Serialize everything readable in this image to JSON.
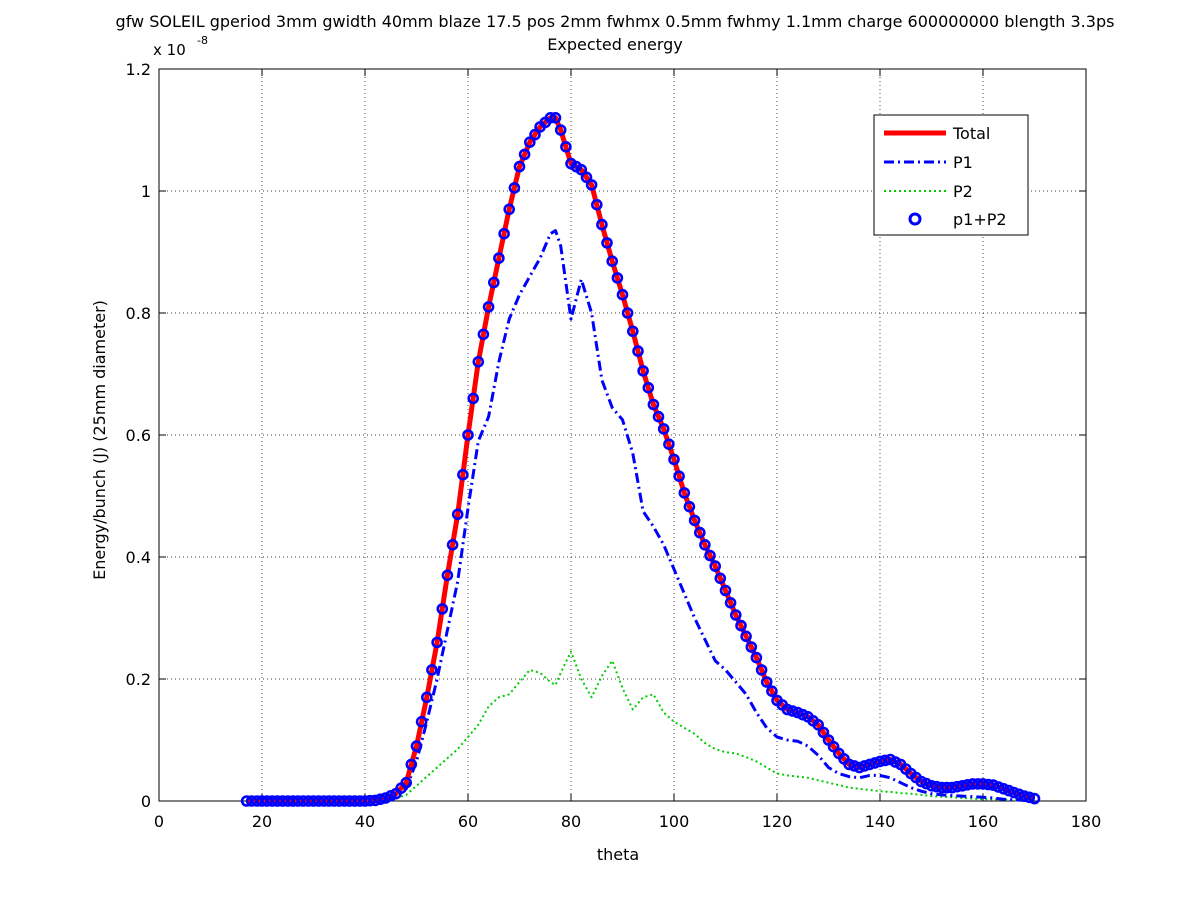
{
  "figure": {
    "title_line1": "gfw SOLEIL gperiod 3mm gwidth 40mm blaze 17.5 pos 2mm fwhmx 0.5mm fwhmy 1.1mm charge 600000000 blength 3.3ps",
    "title_line2": "Expected energy",
    "xlabel": "theta",
    "ylabel": "Energy/bunch (J) (25mm diameter)",
    "y_exponent_base": "x 10",
    "y_exponent_power": "-8"
  },
  "chart_data": {
    "type": "line",
    "title": "gfw SOLEIL gperiod 3mm gwidth 40mm blaze 17.5 pos 2mm fwhmx 0.5mm fwhmy 1.1mm charge 600000000 blength 3.3ps — Expected energy",
    "xlabel": "theta",
    "ylabel": "Energy/bunch (J) (25mm diameter)",
    "xlim": [
      0,
      180
    ],
    "ylim": [
      0,
      1.2e-08
    ],
    "xticks": [
      "0",
      "20",
      "40",
      "60",
      "80",
      "100",
      "120",
      "140",
      "160",
      "180"
    ],
    "yticks": [
      "0",
      "0.2",
      "0.4",
      "0.6",
      "0.8",
      "1",
      "1.2"
    ],
    "y_scale_note": "x 10^-8",
    "grid": true,
    "legend_position": "top-right",
    "colors": {
      "total": "#ff0000",
      "p1": "#0000ff",
      "p2": "#00cc00",
      "p1p2": "#0000ff",
      "p1p2_fill": "#ff0000"
    },
    "series": [
      {
        "name": "Total",
        "style": "solid-thick",
        "x": [
          17,
          20,
          30,
          40,
          42,
          44,
          46,
          48,
          50,
          52,
          54,
          56,
          58,
          60,
          62,
          64,
          66,
          68,
          70,
          72,
          74,
          76,
          77,
          78,
          80,
          82,
          84,
          86,
          88,
          90,
          92,
          94,
          96,
          98,
          100,
          102,
          104,
          106,
          108,
          110,
          112,
          114,
          116,
          118,
          120,
          122,
          124,
          126,
          128,
          130,
          132,
          134,
          136,
          138,
          140,
          142,
          144,
          146,
          148,
          150,
          152,
          154,
          156,
          158,
          160,
          162,
          164,
          166,
          168,
          170
        ],
        "values": [
          0,
          0,
          0,
          0,
          0.01,
          0.05,
          0.12,
          0.3,
          0.9,
          1.7,
          2.6,
          3.7,
          4.7,
          6.0,
          7.2,
          8.1,
          8.9,
          9.7,
          10.4,
          10.8,
          11.05,
          11.2,
          11.2,
          11.0,
          10.45,
          10.35,
          10.1,
          9.45,
          8.85,
          8.3,
          7.7,
          7.05,
          6.5,
          6.1,
          5.6,
          5.05,
          4.6,
          4.2,
          3.85,
          3.45,
          3.05,
          2.7,
          2.35,
          1.95,
          1.65,
          1.5,
          1.45,
          1.38,
          1.25,
          1.0,
          0.78,
          0.6,
          0.55,
          0.6,
          0.65,
          0.68,
          0.6,
          0.45,
          0.32,
          0.25,
          0.22,
          0.22,
          0.25,
          0.28,
          0.28,
          0.26,
          0.2,
          0.14,
          0.08,
          0.04
        ]
      },
      {
        "name": "P1",
        "style": "dash-dot",
        "x": [
          17,
          20,
          30,
          40,
          42,
          44,
          46,
          48,
          50,
          52,
          54,
          56,
          58,
          60,
          62,
          64,
          66,
          68,
          70,
          72,
          74,
          76,
          77,
          78,
          80,
          82,
          84,
          86,
          88,
          90,
          92,
          94,
          96,
          98,
          100,
          102,
          104,
          106,
          108,
          110,
          112,
          114,
          116,
          118,
          120,
          122,
          124,
          126,
          128,
          130,
          132,
          134,
          136,
          138,
          140,
          142,
          144,
          146,
          148,
          150,
          152,
          154,
          156,
          158,
          160,
          162,
          164,
          166,
          168,
          170
        ],
        "values": [
          0,
          0,
          0,
          0,
          0.01,
          0.03,
          0.08,
          0.2,
          0.65,
          1.3,
          2.0,
          2.8,
          3.6,
          4.8,
          5.9,
          6.3,
          7.2,
          7.9,
          8.3,
          8.6,
          8.9,
          9.3,
          9.35,
          9.1,
          7.9,
          8.55,
          8.0,
          6.9,
          6.45,
          6.25,
          5.7,
          4.75,
          4.5,
          4.2,
          3.8,
          3.4,
          3.0,
          2.65,
          2.3,
          2.15,
          1.95,
          1.75,
          1.45,
          1.2,
          1.05,
          1.0,
          0.98,
          0.9,
          0.75,
          0.55,
          0.45,
          0.4,
          0.38,
          0.42,
          0.42,
          0.38,
          0.3,
          0.22,
          0.16,
          0.12,
          0.1,
          0.09,
          0.08,
          0.07,
          0.06,
          0.05,
          0.03,
          0.02,
          0.01,
          0.0
        ]
      },
      {
        "name": "P2",
        "style": "dotted",
        "x": [
          17,
          20,
          30,
          40,
          42,
          44,
          46,
          48,
          50,
          52,
          54,
          56,
          58,
          60,
          62,
          64,
          66,
          68,
          70,
          72,
          74,
          76,
          77,
          78,
          80,
          82,
          84,
          86,
          88,
          90,
          92,
          94,
          96,
          98,
          100,
          102,
          104,
          106,
          108,
          110,
          112,
          114,
          116,
          118,
          120,
          122,
          124,
          126,
          128,
          130,
          132,
          134,
          136,
          138,
          140,
          142,
          144,
          146,
          148,
          150,
          152,
          154,
          156,
          158,
          160,
          162,
          164,
          166,
          168,
          170
        ],
        "values": [
          0,
          0,
          0,
          0,
          0.0,
          0.02,
          0.04,
          0.1,
          0.25,
          0.4,
          0.55,
          0.7,
          0.85,
          1.05,
          1.25,
          1.55,
          1.7,
          1.75,
          1.95,
          2.15,
          2.1,
          1.95,
          1.9,
          2.1,
          2.45,
          2.0,
          1.7,
          2.05,
          2.3,
          1.85,
          1.5,
          1.7,
          1.75,
          1.45,
          1.3,
          1.2,
          1.1,
          0.95,
          0.85,
          0.8,
          0.78,
          0.72,
          0.65,
          0.55,
          0.45,
          0.42,
          0.4,
          0.38,
          0.34,
          0.3,
          0.26,
          0.22,
          0.2,
          0.18,
          0.16,
          0.15,
          0.13,
          0.12,
          0.1,
          0.08,
          0.07,
          0.06,
          0.05,
          0.04,
          0.03,
          0.03,
          0.02,
          0.01,
          0.01,
          0.0
        ]
      },
      {
        "name": "p1+P2",
        "style": "circle-markers",
        "x": [
          17,
          20,
          30,
          40,
          42,
          44,
          46,
          48,
          50,
          52,
          54,
          56,
          58,
          60,
          62,
          64,
          66,
          68,
          70,
          72,
          74,
          76,
          77,
          78,
          80,
          82,
          84,
          86,
          88,
          90,
          92,
          94,
          96,
          98,
          100,
          102,
          104,
          106,
          108,
          110,
          112,
          114,
          116,
          118,
          120,
          122,
          124,
          126,
          128,
          130,
          132,
          134,
          136,
          138,
          140,
          142,
          144,
          146,
          148,
          150,
          152,
          154,
          156,
          158,
          160,
          162,
          164,
          166,
          168,
          170
        ],
        "values": [
          0,
          0,
          0,
          0,
          0.01,
          0.05,
          0.12,
          0.3,
          0.9,
          1.7,
          2.6,
          3.7,
          4.7,
          6.0,
          7.2,
          8.1,
          8.9,
          9.7,
          10.4,
          10.8,
          11.05,
          11.2,
          11.2,
          11.0,
          10.45,
          10.35,
          10.1,
          9.45,
          8.85,
          8.3,
          7.7,
          7.05,
          6.5,
          6.1,
          5.6,
          5.05,
          4.6,
          4.2,
          3.85,
          3.45,
          3.05,
          2.7,
          2.35,
          1.95,
          1.65,
          1.5,
          1.45,
          1.38,
          1.25,
          1.0,
          0.78,
          0.6,
          0.55,
          0.6,
          0.65,
          0.68,
          0.6,
          0.45,
          0.32,
          0.25,
          0.22,
          0.22,
          0.25,
          0.28,
          0.28,
          0.26,
          0.2,
          0.14,
          0.08,
          0.04
        ]
      }
    ],
    "values_unit_note": "series values are in units of 1e-9 J; axis ticks printed in units of 1e-8"
  },
  "legend": {
    "items": [
      {
        "label": "Total",
        "color": "#ff0000",
        "style": "solid-thick"
      },
      {
        "label": "P1",
        "color": "#0000ff",
        "style": "dash-dot"
      },
      {
        "label": "P2",
        "color": "#00cc00",
        "style": "dotted"
      },
      {
        "label": "p1+P2",
        "color": "#0000ff",
        "style": "circle-markers"
      }
    ]
  }
}
